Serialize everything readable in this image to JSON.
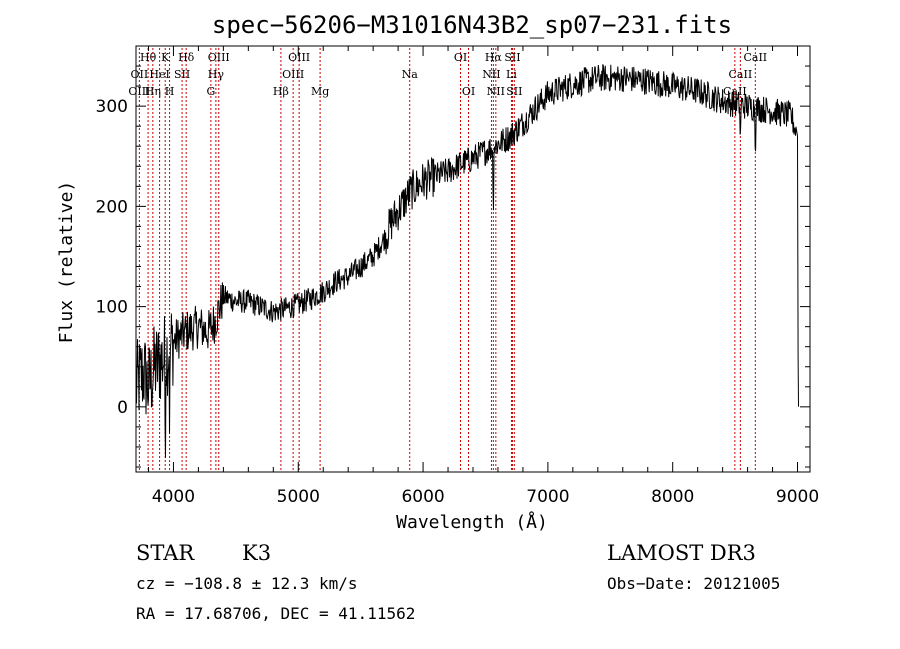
{
  "chart_data": {
    "type": "line",
    "title": "spec−56206−M31016N43B2_sp07−231.fits",
    "xlabel": "Wavelength (Å)",
    "ylabel": "Flux (relative)",
    "xlim": [
      3700,
      9100
    ],
    "ylim": [
      -65,
      360
    ],
    "xticks": [
      4000,
      5000,
      6000,
      7000,
      8000,
      9000
    ],
    "yticks": [
      0,
      100,
      200,
      300
    ],
    "xticks_minor_step": 200,
    "yticks_minor_step": 20,
    "line_color": "#cc0000",
    "spectrum_color": "#000000",
    "spectral_lines": [
      {
        "label": "Hθ",
        "wavelength": 3797,
        "row": 0
      },
      {
        "label": "OII",
        "wavelength": 3727,
        "row": 1
      },
      {
        "label": "OIII",
        "wavelength": 3727,
        "row": 2
      },
      {
        "label": "K",
        "wavelength": 3934,
        "row": 0
      },
      {
        "label": "HeI",
        "wavelength": 3889,
        "row": 1
      },
      {
        "label": "Hη",
        "wavelength": 3835,
        "row": 2
      },
      {
        "label": "SII",
        "wavelength": 4069,
        "row": 1
      },
      {
        "label": "H",
        "wavelength": 3969,
        "row": 2
      },
      {
        "label": "Hδ",
        "wavelength": 4102,
        "row": 0
      },
      {
        "label": "OIII",
        "wavelength": 4363,
        "row": 0
      },
      {
        "label": "Hγ",
        "wavelength": 4340,
        "row": 1
      },
      {
        "label": "G",
        "wavelength": 4300,
        "row": 2
      },
      {
        "label": "OIII",
        "wavelength": 5007,
        "row": 0
      },
      {
        "label": "OIII",
        "wavelength": 4959,
        "row": 1
      },
      {
        "label": "Hβ",
        "wavelength": 4861,
        "row": 2
      },
      {
        "label": "Mg",
        "wavelength": 5175,
        "row": 2
      },
      {
        "label": "Na",
        "wavelength": 5893,
        "row": 1
      },
      {
        "label": "OI",
        "wavelength": 6300,
        "row": 0
      },
      {
        "label": "OI",
        "wavelength": 6364,
        "row": 2
      },
      {
        "label": "Hα",
        "wavelength": 6563,
        "row": 0
      },
      {
        "label": "NII",
        "wavelength": 6548,
        "row": 1
      },
      {
        "label": "NII",
        "wavelength": 6583,
        "row": 2
      },
      {
        "label": "SII",
        "wavelength": 6716,
        "row": 0
      },
      {
        "label": "Li",
        "wavelength": 6708,
        "row": 1
      },
      {
        "label": "SII",
        "wavelength": 6731,
        "row": 2
      },
      {
        "label": "CaII",
        "wavelength": 8662,
        "row": 0
      },
      {
        "label": "CaII",
        "wavelength": 8542,
        "row": 1
      },
      {
        "label": "CaII",
        "wavelength": 8498,
        "row": 2
      }
    ],
    "spectrum_anchors": [
      [
        3700,
        20
      ],
      [
        3760,
        35
      ],
      [
        3800,
        20
      ],
      [
        3850,
        40
      ],
      [
        3900,
        45
      ],
      [
        3950,
        55
      ],
      [
        4000,
        65
      ],
      [
        4100,
        75
      ],
      [
        4200,
        80
      ],
      [
        4280,
        75
      ],
      [
        4330,
        85
      ],
      [
        4400,
        110
      ],
      [
        4500,
        105
      ],
      [
        4600,
        105
      ],
      [
        4700,
        100
      ],
      [
        4800,
        95
      ],
      [
        4900,
        98
      ],
      [
        5000,
        102
      ],
      [
        5100,
        108
      ],
      [
        5200,
        115
      ],
      [
        5300,
        125
      ],
      [
        5400,
        130
      ],
      [
        5500,
        140
      ],
      [
        5600,
        150
      ],
      [
        5700,
        170
      ],
      [
        5750,
        185
      ],
      [
        5800,
        195
      ],
      [
        5900,
        215
      ],
      [
        6000,
        225
      ],
      [
        6100,
        230
      ],
      [
        6200,
        235
      ],
      [
        6300,
        242
      ],
      [
        6400,
        248
      ],
      [
        6500,
        255
      ],
      [
        6600,
        262
      ],
      [
        6700,
        270
      ],
      [
        6800,
        283
      ],
      [
        6900,
        298
      ],
      [
        7000,
        312
      ],
      [
        7200,
        322
      ],
      [
        7400,
        328
      ],
      [
        7600,
        328
      ],
      [
        7800,
        325
      ],
      [
        8000,
        320
      ],
      [
        8200,
        315
      ],
      [
        8400,
        305
      ],
      [
        8600,
        300
      ],
      [
        8800,
        295
      ],
      [
        8950,
        290
      ],
      [
        9000,
        270
      ]
    ],
    "info": {
      "class": "STAR",
      "subclass": "K3",
      "survey": "LAMOST DR3",
      "cz": "cz = −108.8 ± 12.3 km/s",
      "obs_date": "Obs−Date: 20121005",
      "radec": "RA =  17.68706, DEC =  41.11562"
    }
  }
}
